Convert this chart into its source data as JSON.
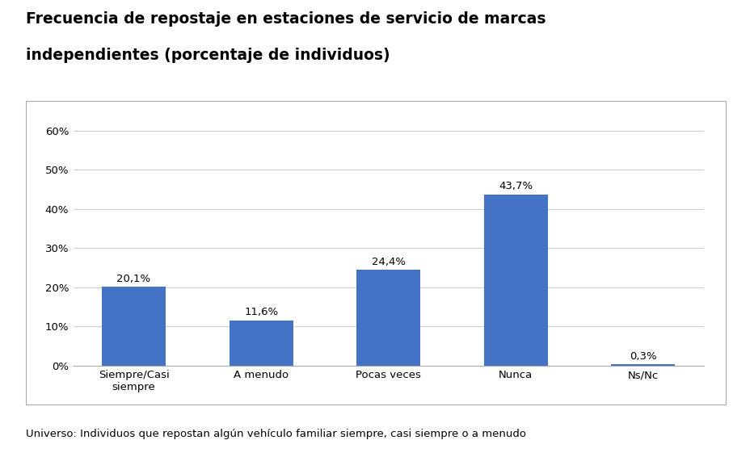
{
  "title_line1": "Frecuencia de repostaje en estaciones de servicio de marcas",
  "title_line2": "independientes (porcentaje de individuos)",
  "categories": [
    "Siempre/Casi\nsiempre",
    "A menudo",
    "Pocas veces",
    "Nunca",
    "Ns/Nc"
  ],
  "values": [
    20.1,
    11.6,
    24.4,
    43.7,
    0.3
  ],
  "labels": [
    "20,1%",
    "11,6%",
    "24,4%",
    "43,7%",
    "0,3%"
  ],
  "bar_color": "#4472C4",
  "yticks": [
    0,
    10,
    20,
    30,
    40,
    50,
    60
  ],
  "ylim": [
    0,
    63
  ],
  "footnote": "Universo: Individuos que repostan algún vehículo familiar siempre, casi siempre o a menudo",
  "background_color": "#FFFFFF",
  "plot_bg_color": "#FFFFFF",
  "title_fontsize": 13.5,
  "label_fontsize": 9.5,
  "tick_fontsize": 9.5,
  "footnote_fontsize": 9.5,
  "border_color": "#AAAAAA",
  "grid_color": "#CCCCCC"
}
